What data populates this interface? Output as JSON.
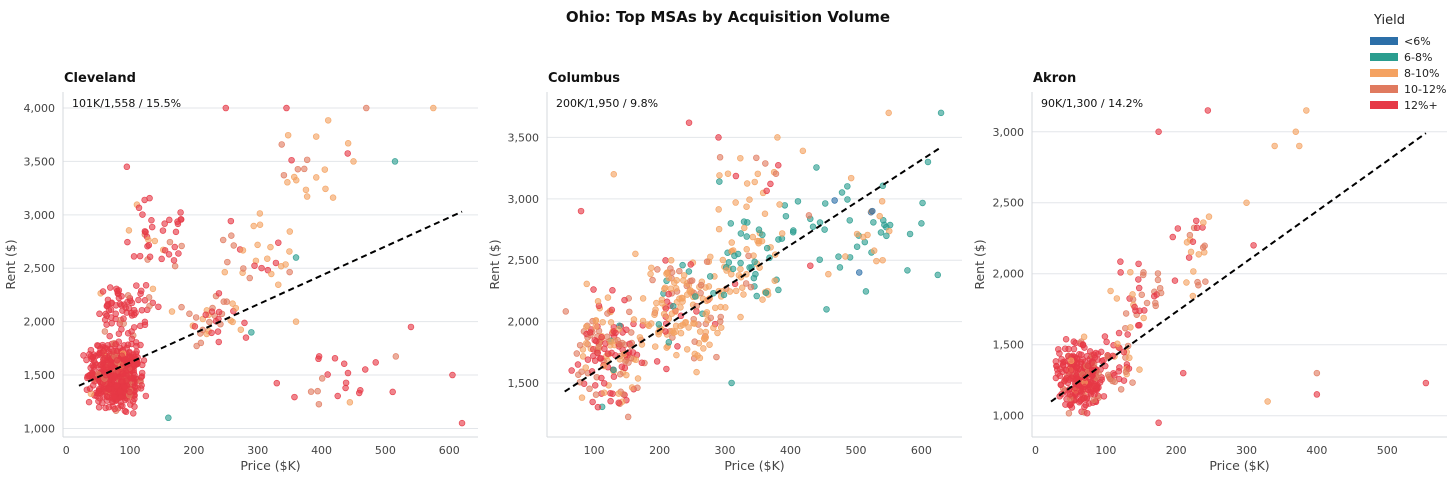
{
  "title": "Ohio: Top MSAs by Acquisition Volume",
  "legend": {
    "title": "Yield",
    "items": [
      {
        "label": "<6%",
        "color": "#2c6fa8"
      },
      {
        "label": "6-8%",
        "color": "#2a9d8f"
      },
      {
        "label": "8-10%",
        "color": "#f4a261"
      },
      {
        "label": "10-12%",
        "color": "#e07a5f"
      },
      {
        "label": "12%+",
        "color": "#e63946"
      }
    ]
  },
  "chart_data": [
    {
      "type": "scatter",
      "title": "Cleveland",
      "annotation": "101K/1,558 / 15.5%",
      "xlabel": "Price ($K)",
      "ylabel": "Rent ($)",
      "xlim": [
        -5,
        645
      ],
      "ylim": [
        920,
        4150
      ],
      "xticks": [
        0,
        100,
        200,
        300,
        400,
        500,
        600
      ],
      "xtick_labels": [
        "0",
        "100",
        "200",
        "300",
        "400",
        "500",
        "600"
      ],
      "yticks": [
        1000,
        1500,
        2000,
        2500,
        3000,
        3500,
        4000
      ],
      "ytick_labels": [
        "1,000",
        "1,500",
        "2,000",
        "2,500",
        "3,000",
        "3,500",
        "4,000"
      ],
      "trend": [
        [
          20,
          1400
        ],
        [
          620,
          3030
        ]
      ],
      "clusters": [
        {
          "n": 520,
          "x": [
            20,
            135
          ],
          "y": [
            1100,
            1900
          ],
          "color_weights": [
            0,
            0,
            0.02,
            0.08,
            0.9
          ],
          "seed": 11
        },
        {
          "n": 70,
          "x": [
            30,
            160
          ],
          "y": [
            1800,
            2450
          ],
          "color_weights": [
            0,
            0,
            0.04,
            0.1,
            0.86
          ],
          "seed": 12
        },
        {
          "n": 40,
          "x": [
            80,
            210
          ],
          "y": [
            2400,
            3250
          ],
          "color_weights": [
            0,
            0,
            0.15,
            0.2,
            0.65
          ],
          "seed": 13
        },
        {
          "n": 40,
          "x": [
            150,
            300
          ],
          "y": [
            1700,
            2400
          ],
          "color_weights": [
            0,
            0.02,
            0.35,
            0.3,
            0.33
          ],
          "seed": 14
        },
        {
          "n": 30,
          "x": [
            220,
            380
          ],
          "y": [
            2200,
            3100
          ],
          "color_weights": [
            0,
            0.04,
            0.6,
            0.25,
            0.11
          ],
          "seed": 15
        },
        {
          "n": 20,
          "x": [
            280,
            480
          ],
          "y": [
            2800,
            4000
          ],
          "color_weights": [
            0,
            0,
            0.5,
            0.3,
            0.2
          ],
          "seed": 16
        },
        {
          "n": 22,
          "x": [
            260,
            620
          ],
          "y": [
            1050,
            1950
          ],
          "color_weights": [
            0,
            0,
            0.05,
            0.1,
            0.85
          ],
          "seed": 17
        }
      ],
      "points": [
        {
          "x": 250,
          "y": 4000,
          "c": 4
        },
        {
          "x": 345,
          "y": 4000,
          "c": 4
        },
        {
          "x": 470,
          "y": 4000,
          "c": 3
        },
        {
          "x": 575,
          "y": 4000,
          "c": 2
        },
        {
          "x": 515,
          "y": 3500,
          "c": 1
        },
        {
          "x": 450,
          "y": 3500,
          "c": 2
        },
        {
          "x": 360,
          "y": 2600,
          "c": 1
        },
        {
          "x": 290,
          "y": 1900,
          "c": 1
        },
        {
          "x": 160,
          "y": 1100,
          "c": 1
        },
        {
          "x": 95,
          "y": 3450,
          "c": 4
        },
        {
          "x": 620,
          "y": 1050,
          "c": 4
        },
        {
          "x": 605,
          "y": 1500,
          "c": 4
        },
        {
          "x": 540,
          "y": 1950,
          "c": 4
        },
        {
          "x": 360,
          "y": 2000,
          "c": 2
        }
      ]
    },
    {
      "type": "scatter",
      "title": "Columbus",
      "annotation": "200K/1,950 / 9.8%",
      "xlabel": "Price ($K)",
      "ylabel": "Rent ($)",
      "xlim": [
        28,
        662
      ],
      "ylim": [
        1060,
        3870
      ],
      "xticks": [
        100,
        200,
        300,
        400,
        500,
        600
      ],
      "xtick_labels": [
        "100",
        "200",
        "300",
        "400",
        "500",
        "600"
      ],
      "yticks": [
        1500,
        2000,
        2500,
        3000,
        3500
      ],
      "ytick_labels": [
        "1,500",
        "2,000",
        "2,500",
        "3,000",
        "3,500"
      ],
      "trend": [
        [
          55,
          1430
        ],
        [
          630,
          3420
        ]
      ],
      "clusters": [
        {
          "n": 170,
          "x": [
            50,
            200
          ],
          "y": [
            1150,
            2350
          ],
          "color_weights": [
            0,
            0.02,
            0.35,
            0.25,
            0.38
          ],
          "seed": 21
        },
        {
          "n": 160,
          "x": [
            150,
            330
          ],
          "y": [
            1500,
            2700
          ],
          "color_weights": [
            0,
            0.05,
            0.65,
            0.18,
            0.12
          ],
          "seed": 22
        },
        {
          "n": 75,
          "x": [
            250,
            420
          ],
          "y": [
            2000,
            3000
          ],
          "color_weights": [
            0,
            0.35,
            0.55,
            0.07,
            0.03
          ],
          "seed": 23
        },
        {
          "n": 50,
          "x": [
            350,
            630
          ],
          "y": [
            2100,
            3400
          ],
          "color_weights": [
            0.04,
            0.7,
            0.22,
            0.02,
            0.02
          ],
          "seed": 24
        },
        {
          "n": 25,
          "x": [
            250,
            450
          ],
          "y": [
            2700,
            3500
          ],
          "color_weights": [
            0,
            0.05,
            0.7,
            0.1,
            0.15
          ],
          "seed": 25
        }
      ],
      "points": [
        {
          "x": 245,
          "y": 3620,
          "c": 4
        },
        {
          "x": 290,
          "y": 3500,
          "c": 4
        },
        {
          "x": 380,
          "y": 3500,
          "c": 2
        },
        {
          "x": 550,
          "y": 3700,
          "c": 2
        },
        {
          "x": 630,
          "y": 3700,
          "c": 1
        },
        {
          "x": 610,
          "y": 3300,
          "c": 1
        },
        {
          "x": 625,
          "y": 2380,
          "c": 1
        },
        {
          "x": 600,
          "y": 2800,
          "c": 1
        },
        {
          "x": 505,
          "y": 2400,
          "c": 0
        },
        {
          "x": 525,
          "y": 2900,
          "c": 0
        },
        {
          "x": 455,
          "y": 2100,
          "c": 1
        },
        {
          "x": 310,
          "y": 1500,
          "c": 1
        },
        {
          "x": 80,
          "y": 2900,
          "c": 4
        },
        {
          "x": 130,
          "y": 3200,
          "c": 2
        }
      ]
    },
    {
      "type": "scatter",
      "title": "Akron",
      "annotation": "90K/1,300 / 14.2%",
      "xlabel": "Price ($K)",
      "ylabel": "Rent ($)",
      "xlim": [
        -5,
        585
      ],
      "ylim": [
        850,
        3280
      ],
      "xticks": [
        0,
        100,
        200,
        300,
        400,
        500
      ],
      "xtick_labels": [
        "0",
        "100",
        "200",
        "300",
        "400",
        "500"
      ],
      "yticks": [
        1000,
        1500,
        2000,
        2500,
        3000
      ],
      "ytick_labels": [
        "1,000",
        "1,500",
        "2,000",
        "2,500",
        "3,000"
      ],
      "trend": [
        [
          22,
          1100
        ],
        [
          555,
          2990
        ]
      ],
      "clusters": [
        {
          "n": 260,
          "x": [
            20,
            110
          ],
          "y": [
            950,
            1600
          ],
          "color_weights": [
            0,
            0,
            0.02,
            0.1,
            0.88
          ],
          "seed": 31
        },
        {
          "n": 40,
          "x": [
            80,
            160
          ],
          "y": [
            1050,
            1700
          ],
          "color_weights": [
            0,
            0,
            0.2,
            0.35,
            0.45
          ],
          "seed": 32
        },
        {
          "n": 35,
          "x": [
            100,
            200
          ],
          "y": [
            1500,
            2200
          ],
          "color_weights": [
            0,
            0,
            0.15,
            0.35,
            0.5
          ],
          "seed": 33
        },
        {
          "n": 25,
          "x": [
            180,
            270
          ],
          "y": [
            1700,
            2650
          ],
          "color_weights": [
            0,
            0,
            0.35,
            0.4,
            0.25
          ],
          "seed": 34
        }
      ],
      "points": [
        {
          "x": 175,
          "y": 3000,
          "c": 4
        },
        {
          "x": 245,
          "y": 3150,
          "c": 4
        },
        {
          "x": 385,
          "y": 3150,
          "c": 2
        },
        {
          "x": 370,
          "y": 3000,
          "c": 2
        },
        {
          "x": 375,
          "y": 2900,
          "c": 2
        },
        {
          "x": 340,
          "y": 2900,
          "c": 2
        },
        {
          "x": 300,
          "y": 2500,
          "c": 2
        },
        {
          "x": 310,
          "y": 2200,
          "c": 4
        },
        {
          "x": 555,
          "y": 1230,
          "c": 4
        },
        {
          "x": 400,
          "y": 1300,
          "c": 3
        },
        {
          "x": 400,
          "y": 1150,
          "c": 4
        },
        {
          "x": 330,
          "y": 1100,
          "c": 2
        },
        {
          "x": 175,
          "y": 950,
          "c": 4
        },
        {
          "x": 210,
          "y": 1300,
          "c": 4
        }
      ]
    }
  ]
}
